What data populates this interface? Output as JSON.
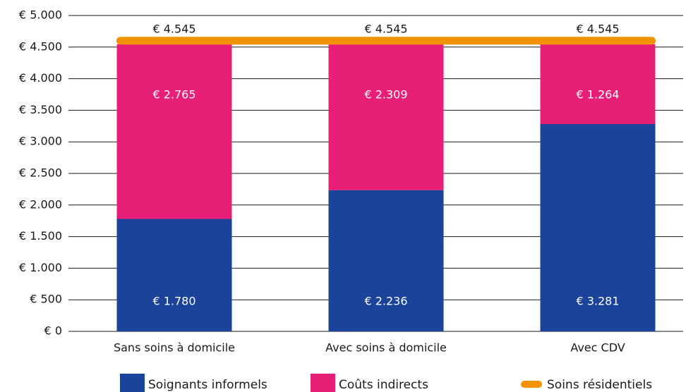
{
  "chart_data": {
    "type": "bar",
    "categories": [
      "Sans soins à domicile",
      "Avec soins à domicile",
      "Avec CDV"
    ],
    "series": [
      {
        "name": "Soignants informels",
        "color": "#1b4399",
        "values": [
          1780,
          2236,
          3281
        ],
        "value_labels": [
          "€ 1.780",
          "€ 2.236",
          "€ 3.281"
        ]
      },
      {
        "name": "Coûts indirects",
        "color": "#e81f76",
        "values": [
          2765,
          2309,
          1264
        ],
        "value_labels": [
          "€ 2.765",
          "€ 2.309",
          "€ 1.264"
        ]
      },
      {
        "name": "Soins résidentiels",
        "type": "line",
        "color": "#f39200",
        "values": [
          4545,
          4545,
          4545
        ],
        "value_labels": [
          "€ 4.545",
          "€ 4.545",
          "€ 4.545"
        ]
      }
    ],
    "stacked": true,
    "ylim": [
      0,
      5000
    ],
    "yticks": [
      {
        "value": 0,
        "label": "€ 0"
      },
      {
        "value": 500,
        "label": "€ 500"
      },
      {
        "value": 1000,
        "label": "€ 1.000"
      },
      {
        "value": 1500,
        "label": "€ 1.500"
      },
      {
        "value": 2000,
        "label": "€ 2.000"
      },
      {
        "value": 2500,
        "label": "€ 2.500"
      },
      {
        "value": 3000,
        "label": "€ 3.000"
      },
      {
        "value": 3500,
        "label": "€ 3.500"
      },
      {
        "value": 4000,
        "label": "€ 4.000"
      },
      {
        "value": 4500,
        "label": "€ 4.500"
      },
      {
        "value": 5000,
        "label": "€ 5.000"
      }
    ],
    "grid": true,
    "legend": "bottom"
  }
}
